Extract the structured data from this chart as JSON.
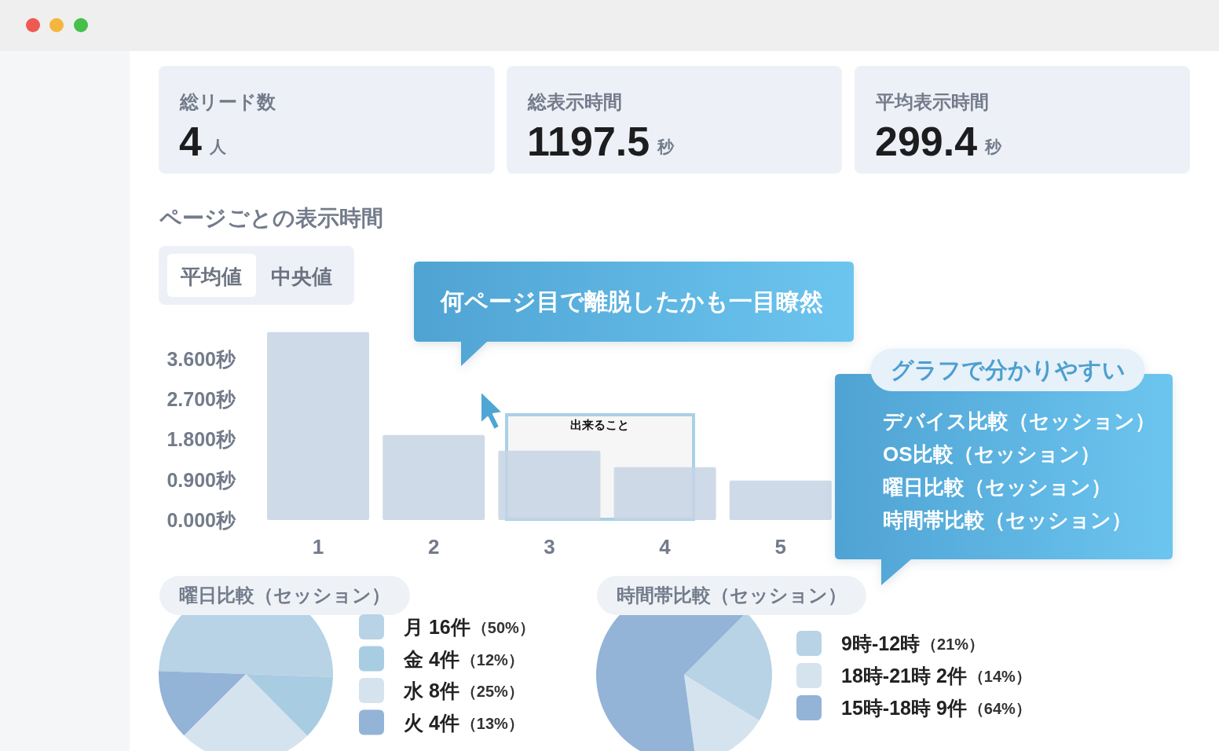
{
  "chart_data": [
    {
      "type": "other",
      "title": "総リード数",
      "annotations": [
        "4",
        "人"
      ]
    },
    {
      "type": "other",
      "title": "総表示時間",
      "annotations": [
        "1197.5",
        "秒"
      ]
    },
    {
      "type": "other",
      "title": "平均表示時間",
      "annotations": [
        "299.4",
        "秒"
      ]
    },
    {
      "type": "bar",
      "title": "ページごとの表示時間",
      "categories": [
        "1",
        "2",
        "3",
        "4",
        "5"
      ],
      "values": [
        4.2,
        1.9,
        1.55,
        1.18,
        0.88
      ],
      "color": "#c6d4e3",
      "ylim": [
        0,
        4.3
      ],
      "yticks": [
        {
          "value": 0,
          "label": "0.000秒"
        },
        {
          "value": 0.9,
          "label": "0.900秒"
        },
        {
          "value": 1.8,
          "label": "1.800秒"
        },
        {
          "value": 2.7,
          "label": "2.700秒"
        },
        {
          "value": 3.6,
          "label": "3.600秒"
        }
      ],
      "annotations": [
        "平均値",
        "中央値",
        "何ページ目で離脱したかも一目瞭然",
        "出来ること"
      ]
    },
    {
      "type": "other",
      "title": "グラフで分かりやすい",
      "annotations": [
        "デバイス比較（セッション）",
        "OS比較（セッション）",
        "曜日比較（セッション）",
        "時間帯比較（セッション）"
      ]
    },
    {
      "type": "pie",
      "title": "曜日比較（セッション）",
      "categories": [
        "月 16件",
        "金 4件",
        "水 8件",
        "火 4件"
      ],
      "values": [
        50,
        12,
        25,
        13
      ],
      "value_labels": [
        "（50%）",
        "（12%）",
        "（25%）",
        "（13%）"
      ],
      "colors": [
        "#b8d2e6",
        "#a8cde2",
        "#d5e3ee",
        "#93b3d7"
      ],
      "legend": "right"
    },
    {
      "type": "pie",
      "title": "時間帯比較（セッション）",
      "categories": [
        "9時-12時",
        "18時-21時 2件",
        "15時-18時 9件"
      ],
      "values": [
        21,
        14,
        64
      ],
      "value_labels": [
        "（21%）",
        "（14%）",
        "（64%）"
      ],
      "colors": [
        "#b8d2e6",
        "#d5e3ee",
        "#93b3d7"
      ],
      "legend": "right"
    }
  ]
}
